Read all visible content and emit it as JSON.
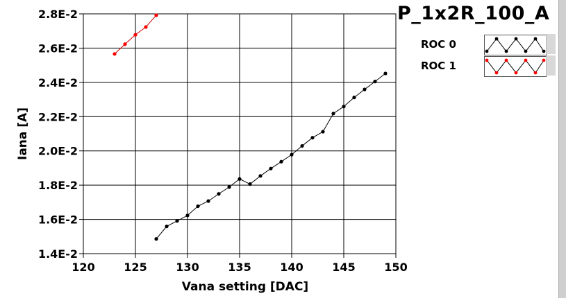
{
  "panel": {
    "title": "P_1x2R_100_A"
  },
  "legend": [
    {
      "label": "ROC 0",
      "color": "#000000"
    },
    {
      "label": "ROC 1",
      "color": "#ff0000"
    }
  ],
  "chart_data": {
    "type": "line",
    "xlabel": "Vana setting [DAC]",
    "ylabel": "Iana [A]",
    "xlim": [
      120,
      150
    ],
    "ylim": [
      0.014,
      0.028
    ],
    "xticks": [
      120,
      125,
      130,
      135,
      140,
      145,
      150
    ],
    "yticks": [
      0.014,
      0.016,
      0.018,
      0.02,
      0.022,
      0.024,
      0.026,
      0.028
    ],
    "ytick_labels": [
      "1.4E-2",
      "1.6E-2",
      "1.8E-2",
      "2.0E-2",
      "2.2E-2",
      "2.4E-2",
      "2.6E-2",
      "2.8E-2"
    ],
    "xtick_labels": [
      "120",
      "125",
      "130",
      "135",
      "140",
      "145",
      "150"
    ],
    "grid": true,
    "series": [
      {
        "name": "ROC 0",
        "color": "#000000",
        "x": [
          127,
          128,
          129,
          130,
          131,
          132,
          133,
          134,
          135,
          136,
          137,
          138,
          139,
          140,
          141,
          142,
          143,
          144,
          145,
          146,
          147,
          148,
          149
        ],
        "y": [
          0.01486,
          0.01559,
          0.01591,
          0.01623,
          0.01677,
          0.01707,
          0.01749,
          0.01789,
          0.01836,
          0.01806,
          0.01854,
          0.01897,
          0.01937,
          0.01978,
          0.02029,
          0.02077,
          0.02112,
          0.02218,
          0.02259,
          0.02312,
          0.02359,
          0.02405,
          0.02452
        ]
      },
      {
        "name": "ROC 1",
        "color": "#ff0000",
        "x": [
          123,
          124,
          125,
          126,
          127
        ],
        "y": [
          0.02566,
          0.02623,
          0.02678,
          0.02723,
          0.02792
        ]
      }
    ]
  }
}
